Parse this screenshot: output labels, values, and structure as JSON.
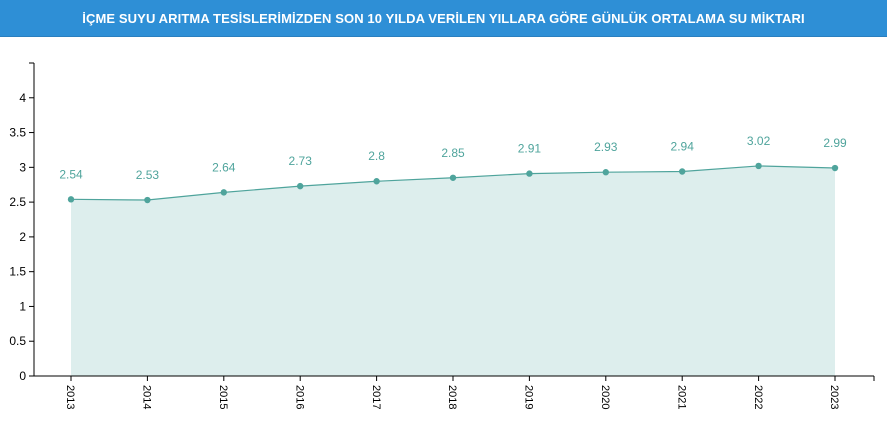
{
  "header": {
    "title": "İÇME SUYU ARITMA TESİSLERİMİZDEN SON 10 YILDA VERİLEN YILLARA GÖRE GÜNLÜK ORTALAMA SU MİKTARI"
  },
  "colors": {
    "header_bg": "#2e8fd6",
    "line": "#4fa49c",
    "area_fill": "#ddeeed",
    "label": "#4fa49c",
    "axis": "#000000"
  },
  "chart_data": {
    "type": "area",
    "title": "İÇME SUYU ARITMA TESİSLERİMİZDEN SON 10 YILDA VERİLEN YILLARA GÖRE GÜNLÜK ORTALAMA SU MİKTARI",
    "xlabel": "",
    "ylabel": "",
    "categories": [
      "2013",
      "2014",
      "2015",
      "2016",
      "2017",
      "2018",
      "2019",
      "2020",
      "2021",
      "2022",
      "2023"
    ],
    "series": [
      {
        "values": [
          2.54,
          2.53,
          2.64,
          2.73,
          2.8,
          2.85,
          2.91,
          2.93,
          2.94,
          3.02,
          2.99
        ],
        "labels": [
          "2.54",
          "2.53",
          "2.64",
          "2.73",
          "2.8",
          "2.85",
          "2.91",
          "2.93",
          "2.94",
          "3.02",
          "2.99"
        ]
      }
    ],
    "ylim": [
      0,
      4.5
    ],
    "yticks": [
      "0",
      "0.5",
      "1",
      "1.5",
      "2",
      "2.5",
      "3",
      "3.5",
      "4"
    ],
    "grid": false,
    "legend": "none"
  }
}
